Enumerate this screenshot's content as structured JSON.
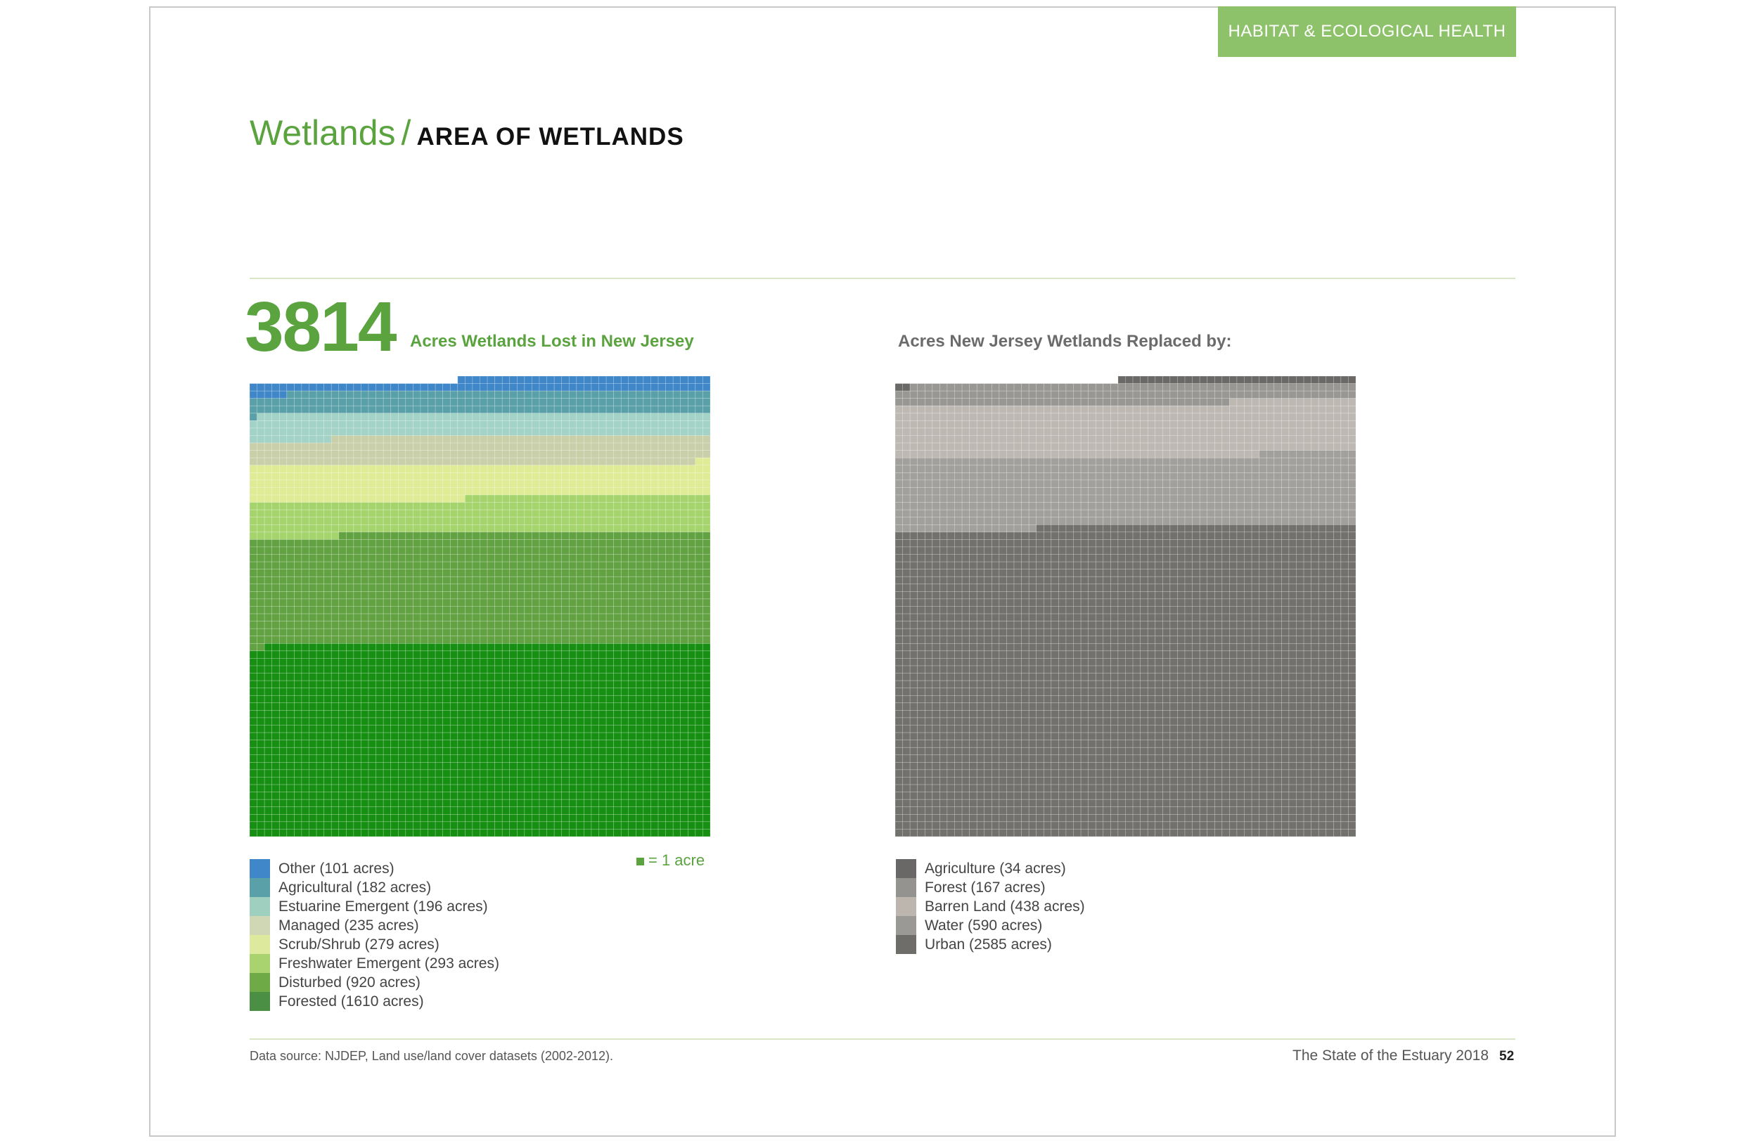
{
  "header": {
    "section_tag": "HABITAT & ECOLOGICAL HEALTH"
  },
  "title": {
    "main": "Wetlands",
    "separator": "/",
    "sub": "AREA OF WETLANDS"
  },
  "lost": {
    "number": "3814",
    "label": "Acres Wetlands Lost in New Jersey",
    "unit_key": "= 1 acre"
  },
  "replaced": {
    "label": "Acres New Jersey Wetlands Replaced by:"
  },
  "chart_data": [
    {
      "type": "waffle",
      "title": "Acres Wetlands Lost in New Jersey",
      "total": 3814,
      "unit": "1 acre per square",
      "series": [
        {
          "name": "Other",
          "value": 101,
          "label": "Other (101 acres)",
          "color": "#3f87c8"
        },
        {
          "name": "Agricultural",
          "value": 182,
          "label": "Agricultural (182 acres)",
          "color": "#5aa0a8"
        },
        {
          "name": "Estuarine Emergent",
          "value": 196,
          "label": "Estuarine Emergent (196 acres)",
          "color": "#9fcfbf"
        },
        {
          "name": "Managed",
          "value": 235,
          "label": "Managed (235 acres)",
          "color": "#cfd7b5"
        },
        {
          "name": "Scrub/Shrub",
          "value": 279,
          "label": "Scrub/Shrub (279 acres)",
          "color": "#dde99c"
        },
        {
          "name": "Freshwater Emergent",
          "value": 293,
          "label": "Freshwater Emergent (293 acres)",
          "color": "#a9d36e"
        },
        {
          "name": "Disturbed",
          "value": 920,
          "label": "Disturbed (920 acres)",
          "color": "#6eaa46"
        },
        {
          "name": "Forested",
          "value": 1610,
          "label": "Forested (1610 acres)",
          "color": "#4b8f45"
        }
      ],
      "draw_colors": [
        "#3f87c8",
        "#5aa0a8",
        "#a3d2c6",
        "#c9cfa8",
        "#dfeb95",
        "#a6d46c",
        "#62a243",
        "#168f12"
      ]
    },
    {
      "type": "waffle",
      "title": "Acres New Jersey Wetlands Replaced by:",
      "unit": "1 acre per square",
      "series": [
        {
          "name": "Agriculture",
          "value": 34,
          "label": "Agriculture (34 acres)",
          "color": "#696866"
        },
        {
          "name": "Forest",
          "value": 167,
          "label": "Forest (167 acres)",
          "color": "#959390"
        },
        {
          "name": "Barren Land",
          "value": 438,
          "label": "Barren Land (438 acres)",
          "color": "#bcb6af"
        },
        {
          "name": "Water",
          "value": 590,
          "label": "Water (590 acres)",
          "color": "#9b9995"
        },
        {
          "name": "Urban",
          "value": 2585,
          "label": "Urban (2585 acres)",
          "color": "#6f6d69"
        }
      ],
      "draw_colors": [
        "#6a6967",
        "#999794",
        "#bdb8b1",
        "#a2a09c",
        "#73716d"
      ]
    }
  ],
  "footer": {
    "source": "Data source: NJDEP, Land use/land cover datasets (2002-2012).",
    "publication": "The State of the Estuary 2018",
    "page_number": "52"
  }
}
